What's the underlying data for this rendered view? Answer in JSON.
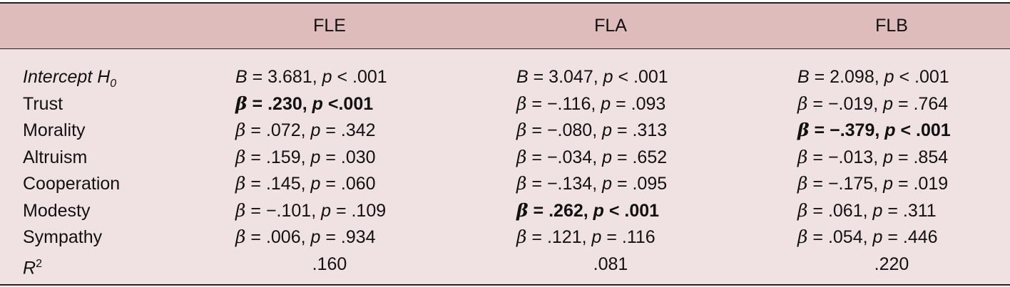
{
  "columns": [
    "",
    "FLE",
    "FLA",
    "FLB"
  ],
  "rows": [
    {
      "label": "Intercept H",
      "label_sub": "0",
      "label_italic": true,
      "cells": [
        {
          "text": "B = 3.681, p < .001",
          "bold": false
        },
        {
          "text": "B = 3.047, p < .001",
          "bold": false
        },
        {
          "text": "B = 2.098, p < .001",
          "bold": false
        }
      ]
    },
    {
      "label": "Trust",
      "cells": [
        {
          "text": "β = .230, p <.001",
          "bold": true
        },
        {
          "text": "β = −.116, p = .093",
          "bold": false
        },
        {
          "text": "β = −.019, p = .764",
          "bold": false
        }
      ]
    },
    {
      "label": "Morality",
      "cells": [
        {
          "text": "β = .072, p = .342",
          "bold": false
        },
        {
          "text": "β = −.080, p = .313",
          "bold": false
        },
        {
          "text": "β = −.379, p < .001",
          "bold": true
        }
      ]
    },
    {
      "label": "Altruism",
      "cells": [
        {
          "text": "β = .159, p = .030",
          "bold": false
        },
        {
          "text": "β = −.034, p = .652",
          "bold": false
        },
        {
          "text": "β = −.013, p = .854",
          "bold": false
        }
      ]
    },
    {
      "label": "Cooperation",
      "cells": [
        {
          "text": "β = .145, p = .060",
          "bold": false
        },
        {
          "text": "β = −.134, p = .095",
          "bold": false
        },
        {
          "text": "β = −.175, p = .019",
          "bold": false
        }
      ]
    },
    {
      "label": "Modesty",
      "cells": [
        {
          "text": "β = −.101, p = .109",
          "bold": false
        },
        {
          "text": "β = .262, p < .001",
          "bold": true
        },
        {
          "text": "β = .061, p = .311",
          "bold": false
        }
      ]
    },
    {
      "label": "Sympathy",
      "cells": [
        {
          "text": "β = .006, p = .934",
          "bold": false
        },
        {
          "text": "β = .121, p = .116",
          "bold": false
        },
        {
          "text": "β = .054, p = .446",
          "bold": false
        }
      ]
    }
  ],
  "r2": {
    "label": "R",
    "label_sup": "2",
    "values": [
      ".160",
      ".081",
      ".220"
    ]
  }
}
